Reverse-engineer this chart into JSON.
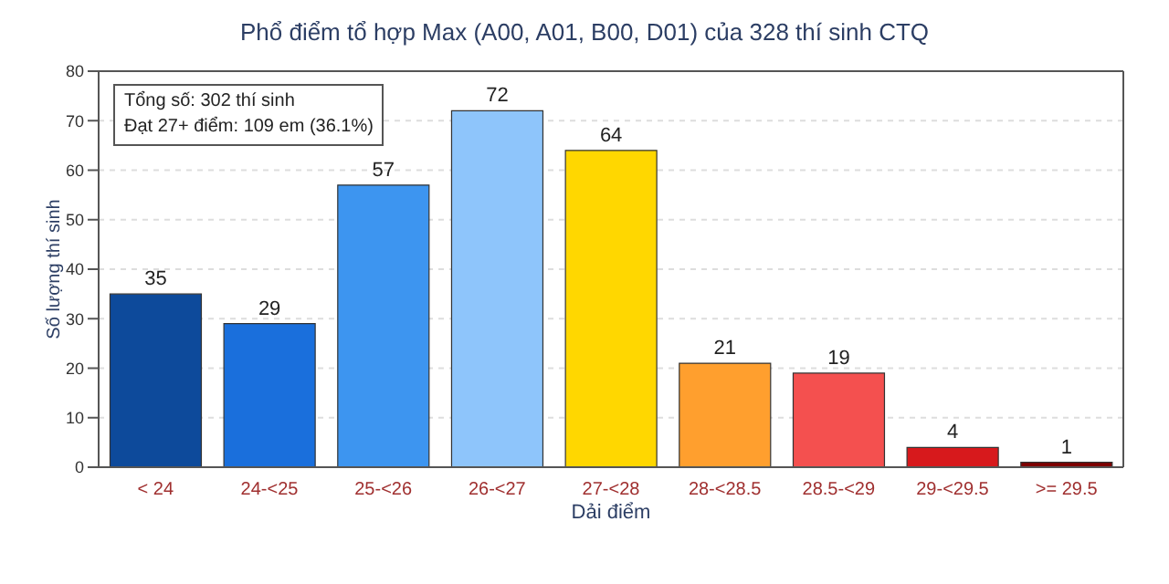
{
  "chart_data": {
    "type": "bar",
    "title": "Phổ điểm tổ hợp Max (A00, A01, B00, D01) của 328 thí sinh CTQ",
    "xlabel": "Dải điểm",
    "ylabel": "Số lượng thí sinh",
    "categories": [
      "< 24",
      "24-<25",
      "25-<26",
      "26-<27",
      "27-<28",
      "28-<28.5",
      "28.5-<29",
      "29-<29.5",
      ">= 29.5"
    ],
    "values": [
      35,
      29,
      57,
      72,
      64,
      21,
      19,
      4,
      1
    ],
    "colors": [
      "#0d4a9b",
      "#1a6fdc",
      "#3d95f0",
      "#8ec5fb",
      "#ffd700",
      "#ff9f2e",
      "#f4504f",
      "#d7191c",
      "#7f0000"
    ],
    "ylim": [
      0,
      80
    ],
    "yticks": [
      0,
      10,
      20,
      30,
      40,
      50,
      60,
      70,
      80
    ],
    "grid": "y",
    "data_labels": true,
    "annotations": [
      "Tổng số: 302 thí sinh",
      "Đạt 27+ điểm: 109 em (36.1%)"
    ]
  }
}
